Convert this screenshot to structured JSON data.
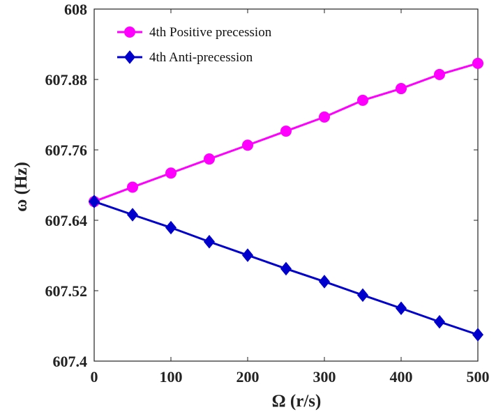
{
  "chart_data": {
    "type": "line",
    "x": [
      0,
      50,
      100,
      150,
      200,
      250,
      300,
      350,
      400,
      450,
      500
    ],
    "series": [
      {
        "name": "4th Positive precession",
        "color": "#ff00ff",
        "marker": "circle",
        "values": [
          607.672,
          607.6965,
          607.7205,
          607.7445,
          607.768,
          607.792,
          607.816,
          607.8445,
          607.8645,
          607.8885,
          607.9075
        ]
      },
      {
        "name": "4th Anti-precession",
        "color": "#0000cc",
        "marker": "diamond",
        "values": [
          607.672,
          607.6495,
          607.6275,
          607.6035,
          607.5805,
          607.5575,
          607.5355,
          607.5125,
          607.49,
          607.467,
          607.445
        ]
      }
    ],
    "xlabel": "Ω (r/s)",
    "ylabel": "ω (Hz)",
    "xlim": [
      0,
      500
    ],
    "ylim": [
      607.4,
      608
    ],
    "xticks": [
      "0",
      "100",
      "200",
      "300",
      "400",
      "500"
    ],
    "yticks": [
      "607.4",
      "607.52",
      "607.64",
      "607.76",
      "607.88",
      "608"
    ],
    "grid": false,
    "legend_position": "top-left"
  }
}
